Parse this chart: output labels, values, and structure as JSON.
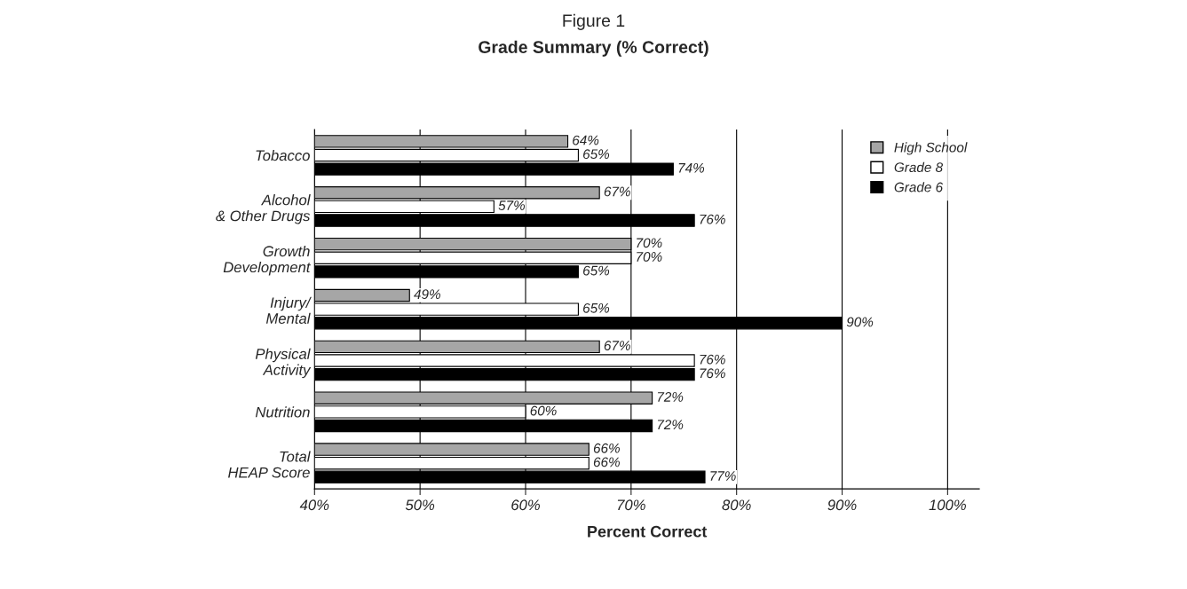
{
  "chart_data": {
    "type": "bar",
    "orientation": "horizontal",
    "title": "Figure 1",
    "subtitle": "Grade Summary (% Correct)",
    "xlabel": "Percent Correct",
    "categories": [
      "Tobacco",
      "Alcohol\n& Other Drugs",
      "Growth\nDevelopment",
      "Injury/\nMental",
      "Physical\nActivity",
      "Nutrition",
      "Total\nHEAP Score"
    ],
    "series": [
      {
        "name": "High School",
        "color": "#a6a6a6",
        "values": [
          64,
          67,
          70,
          49,
          67,
          72,
          66
        ],
        "value_labels": [
          "64%",
          "67%",
          "70%",
          "49%",
          "67%",
          "72%",
          "66%"
        ]
      },
      {
        "name": "Grade 8",
        "color": "#ffffff",
        "values": [
          65,
          57,
          70,
          65,
          76,
          60,
          66
        ],
        "value_labels": [
          "65%",
          "57%",
          "70%",
          "65%",
          "76%",
          "60%",
          "66%"
        ]
      },
      {
        "name": "Grade 6",
        "color": "#000000",
        "values": [
          74,
          76,
          65,
          90,
          76,
          72,
          77
        ],
        "value_labels": [
          "74%",
          "76%",
          "65%",
          "90%",
          "76%",
          "72%",
          "77%"
        ]
      }
    ],
    "xlim": [
      40,
      103
    ],
    "xticks": [
      {
        "value": 40,
        "label": "40%"
      },
      {
        "value": 50,
        "label": "50%"
      },
      {
        "value": 60,
        "label": "60%"
      },
      {
        "value": 70,
        "label": "70%"
      },
      {
        "value": 80,
        "label": "80%"
      },
      {
        "value": 90,
        "label": "90%"
      },
      {
        "value": 100,
        "label": "100%"
      }
    ],
    "grid": "x",
    "legend": "top right"
  }
}
